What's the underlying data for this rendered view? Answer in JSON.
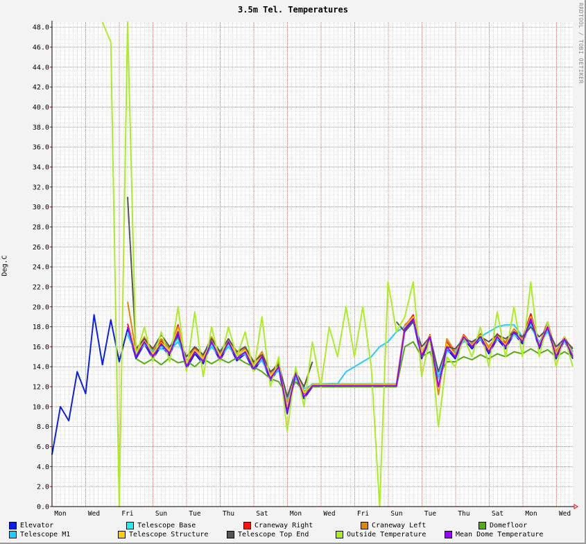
{
  "chart_data": {
    "type": "line",
    "title": "3.5m Tel. Temperatures",
    "ylabel": "Deg.C",
    "watermark": "RRDTOOL / TOBI OETIKER",
    "ylim": [
      0,
      48.5
    ],
    "y_ticks": [
      "0.0",
      "2.0",
      "4.0",
      "6.0",
      "8.0",
      "10.0",
      "12.0",
      "14.0",
      "16.0",
      "18.0",
      "20.0",
      "22.0",
      "24.0",
      "26.0",
      "28.0",
      "30.0",
      "32.0",
      "34.0",
      "36.0",
      "38.0",
      "40.0",
      "42.0",
      "44.0",
      "46.0",
      "48.0"
    ],
    "x_ticks": [
      "Mon",
      "Wed",
      "Fri",
      "Sun",
      "Tue",
      "Thu",
      "Sat",
      "Mon",
      "Wed",
      "Fri",
      "Sun",
      "Tue",
      "Thu",
      "Sat",
      "Mon",
      "Wed"
    ],
    "sample_interval": "12 hours",
    "grid": true,
    "legend_placement": "bottom",
    "series": [
      {
        "name": "Elevator",
        "color": "#0a1eea",
        "values": [
          5.2,
          10.0,
          8.6,
          13.5,
          11.3,
          19.2,
          14.2,
          18.7,
          14.5,
          17.8,
          14.8,
          16.3,
          14.8,
          16.1,
          15.1,
          17.3,
          13.8,
          15.3,
          14.3,
          16.3,
          14.6,
          16.3,
          14.6,
          15.3,
          13.6,
          14.8,
          12.6,
          13.8,
          9.3,
          13.1,
          10.8,
          12.0,
          12.0,
          12.0,
          12.0,
          12.0,
          12.0,
          12.0,
          12.0,
          12.0,
          12.0,
          12.0,
          17.6,
          18.6,
          14.8,
          16.8,
          11.8,
          15.8,
          14.8,
          16.8,
          15.8,
          16.8,
          15.3,
          16.8,
          15.8,
          17.3,
          16.3,
          18.6,
          15.8,
          17.8,
          14.8,
          16.6,
          14.8
        ]
      },
      {
        "name": "Telescope Base",
        "color": "#22eeee",
        "values": [
          null,
          null,
          null,
          null,
          null,
          null,
          null,
          null,
          null,
          17.5,
          15.2,
          16.4,
          15.6,
          16.0,
          15.8,
          16.8,
          14.5,
          15.6,
          14.8,
          16.2,
          15.0,
          16.2,
          15.1,
          15.4,
          14.0,
          14.8,
          13.0,
          13.8,
          10.5,
          13.0,
          11.5,
          12.3,
          12.3,
          12.3,
          12.3,
          12.3,
          12.3,
          12.3,
          12.3,
          12.3,
          12.3,
          12.3,
          17.5,
          18.5,
          15.5,
          16.8,
          12.8,
          15.8,
          15.3,
          16.6,
          16.2,
          16.8,
          15.8,
          16.8,
          16.3,
          17.2,
          16.6,
          18.2,
          16.2,
          17.6,
          15.3,
          16.6,
          15.3
        ]
      },
      {
        "name": "Craneway Right",
        "color": "#ff1010",
        "values": [
          null,
          null,
          null,
          null,
          null,
          null,
          null,
          null,
          null,
          18.3,
          15.2,
          16.8,
          15.2,
          16.6,
          15.5,
          18.2,
          14.2,
          15.8,
          14.7,
          16.8,
          15.0,
          16.8,
          15.0,
          15.8,
          14.0,
          15.2,
          13.0,
          14.3,
          9.8,
          13.5,
          11.3,
          12.2,
          12.2,
          12.2,
          12.2,
          12.2,
          12.2,
          12.2,
          12.2,
          12.2,
          12.2,
          12.2,
          18.0,
          19.2,
          15.3,
          17.2,
          11.5,
          16.5,
          15.3,
          17.2,
          16.2,
          17.3,
          15.8,
          17.3,
          16.3,
          17.8,
          16.8,
          19.3,
          16.2,
          18.5,
          15.2,
          17.0,
          15.2
        ]
      },
      {
        "name": "Craneway Left",
        "color": "#dd8800",
        "values": [
          null,
          null,
          null,
          null,
          null,
          null,
          null,
          null,
          null,
          20.5,
          15.5,
          17.0,
          15.5,
          16.8,
          15.8,
          18.0,
          14.5,
          16.0,
          15.0,
          17.0,
          15.3,
          16.8,
          15.3,
          16.0,
          14.3,
          15.5,
          13.3,
          14.5,
          10.3,
          13.5,
          11.5,
          12.2,
          12.2,
          12.2,
          12.2,
          12.2,
          12.2,
          12.2,
          12.2,
          12.2,
          12.2,
          12.2,
          18.2,
          19.0,
          15.5,
          17.0,
          11.2,
          16.8,
          15.5,
          17.0,
          16.3,
          17.2,
          16.0,
          17.2,
          16.5,
          17.8,
          16.8,
          19.0,
          16.3,
          18.3,
          15.5,
          17.0,
          15.5
        ]
      },
      {
        "name": "Domefloor",
        "color": "#55aa11",
        "values": [
          null,
          null,
          null,
          null,
          null,
          null,
          null,
          null,
          null,
          null,
          14.8,
          14.3,
          14.8,
          14.2,
          14.9,
          14.4,
          14.6,
          14.0,
          14.8,
          14.3,
          14.8,
          14.4,
          14.9,
          14.4,
          14.0,
          13.5,
          12.8,
          12.5,
          11.0,
          12.5,
          11.5,
          12.0,
          12.0,
          12.0,
          12.0,
          12.0,
          12.0,
          12.0,
          12.0,
          12.0,
          12.0,
          12.0,
          16.0,
          16.5,
          15.0,
          15.5,
          13.0,
          14.5,
          14.5,
          15.0,
          14.7,
          15.2,
          14.8,
          15.3,
          15.0,
          15.5,
          15.3,
          15.8,
          15.3,
          15.7,
          15.0,
          15.5,
          15.0
        ]
      },
      {
        "name": "Telescope M1",
        "color": "#22ccff",
        "values": [
          null,
          null,
          null,
          null,
          null,
          null,
          null,
          null,
          null,
          17.2,
          15.3,
          16.2,
          15.6,
          15.8,
          15.6,
          16.5,
          14.6,
          15.4,
          14.8,
          16.0,
          15.0,
          16.0,
          15.0,
          15.3,
          14.0,
          14.6,
          13.0,
          13.6,
          10.8,
          12.8,
          11.8,
          12.2,
          12.2,
          12.3,
          12.3,
          13.5,
          14.0,
          14.5,
          15.0,
          16.0,
          16.5,
          17.5,
          18.0,
          18.8,
          16.0,
          16.8,
          13.0,
          15.5,
          15.5,
          16.5,
          16.5,
          17.0,
          17.5,
          18.0,
          18.2,
          18.2,
          17.0,
          18.0,
          16.5,
          17.5,
          16.0,
          16.5,
          15.5
        ]
      },
      {
        "name": "Telescope Structure",
        "color": "#ffcc00",
        "values": [
          null,
          null,
          null,
          null,
          null,
          null,
          null,
          null,
          null,
          18.0,
          15.4,
          16.6,
          15.3,
          16.4,
          15.6,
          17.8,
          14.4,
          15.7,
          14.8,
          16.7,
          15.1,
          16.6,
          15.1,
          15.7,
          14.1,
          15.1,
          13.1,
          14.1,
          10.0,
          13.4,
          11.4,
          12.2,
          12.2,
          12.2,
          12.2,
          12.2,
          12.2,
          12.2,
          12.2,
          12.2,
          12.2,
          12.2,
          17.9,
          19.0,
          15.4,
          17.1,
          11.8,
          16.3,
          15.2,
          17.1,
          16.1,
          17.1,
          15.7,
          17.1,
          16.2,
          17.6,
          16.6,
          19.0,
          16.1,
          18.2,
          15.2,
          16.9,
          15.2
        ]
      },
      {
        "name": "Telescope Top End",
        "color": "#555555",
        "values": [
          null,
          null,
          null,
          null,
          null,
          null,
          null,
          null,
          null,
          31.0,
          15.8,
          16.8,
          15.8,
          17.2,
          16.0,
          17.0,
          15.0,
          16.0,
          15.2,
          16.8,
          15.5,
          16.8,
          15.5,
          16.0,
          14.5,
          15.2,
          13.5,
          14.2,
          11.0,
          13.5,
          12.0,
          14.5,
          null,
          14.8,
          null,
          15.0,
          null,
          16.0,
          null,
          16.2,
          null,
          18.5,
          17.5,
          18.5,
          16.0,
          17.0,
          13.5,
          16.0,
          15.8,
          16.8,
          16.5,
          17.0,
          16.5,
          17.2,
          16.8,
          17.5,
          17.0,
          18.0,
          17.0,
          17.8,
          16.0,
          16.8,
          15.8
        ]
      },
      {
        "name": "Outside Temperature",
        "color": "#aaee22",
        "values": [
          null,
          null,
          null,
          null,
          null,
          null,
          48.5,
          46.5,
          0,
          48.5,
          15.0,
          18.0,
          14.5,
          17.5,
          14.5,
          20.0,
          13.5,
          19.5,
          13.0,
          18.0,
          14.5,
          18.0,
          15.0,
          17.5,
          13.5,
          19.0,
          12.0,
          15.0,
          7.5,
          14.0,
          10.0,
          16.5,
          12.0,
          18.0,
          15.0,
          20.0,
          15.0,
          20.0,
          14.0,
          0,
          22.5,
          17.5,
          19.0,
          22.5,
          13.0,
          17.0,
          8.0,
          15.0,
          14.0,
          17.0,
          15.0,
          18.0,
          14.0,
          19.5,
          15.0,
          20.0,
          15.0,
          22.5,
          15.0,
          18.5,
          14.0,
          17.0,
          14.0
        ]
      },
      {
        "name": "Mean Dome Temperature",
        "color": "#9900ff",
        "values": [
          null,
          null,
          null,
          null,
          null,
          null,
          null,
          null,
          null,
          18.0,
          15.0,
          16.5,
          15.0,
          16.3,
          15.3,
          17.5,
          14.0,
          15.5,
          14.5,
          16.5,
          14.8,
          16.5,
          14.8,
          15.5,
          13.8,
          15.0,
          12.8,
          14.0,
          9.5,
          13.3,
          11.0,
          12.1,
          12.1,
          12.1,
          12.1,
          12.1,
          12.1,
          12.1,
          12.1,
          12.1,
          12.1,
          12.1,
          17.8,
          18.8,
          15.0,
          17.0,
          12.0,
          16.0,
          15.0,
          17.0,
          16.0,
          17.0,
          15.5,
          17.0,
          16.0,
          17.5,
          16.5,
          18.8,
          16.0,
          18.0,
          15.0,
          16.8,
          15.0
        ]
      }
    ]
  }
}
